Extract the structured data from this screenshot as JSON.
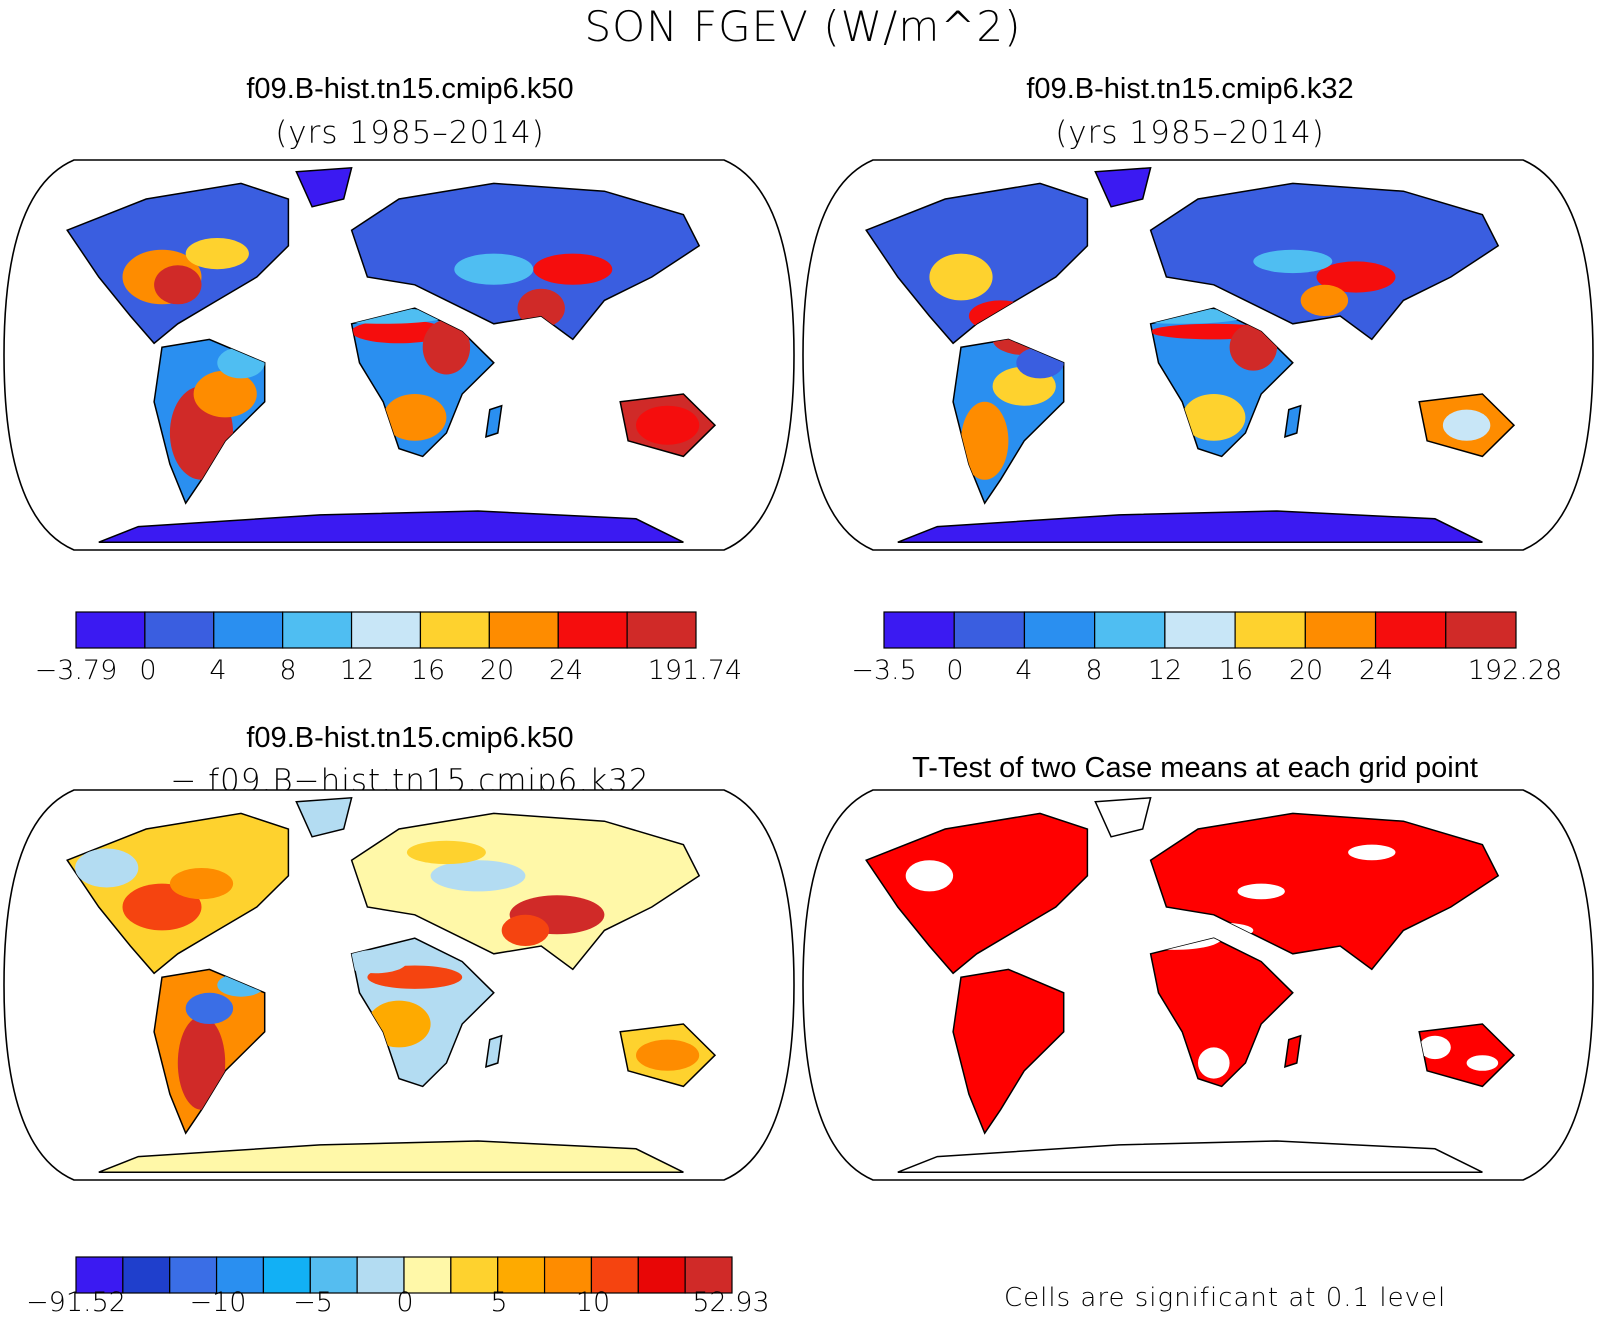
{
  "figure": {
    "title": "SON FGEV (W/m^2)"
  },
  "panels": {
    "k50": {
      "title": "f09.B-hist.tn15.cmip6.k50",
      "subtitle": "(yrs 1985–2014)",
      "colorbar": {
        "labels": [
          "−3.79",
          "0",
          "4",
          "8",
          "12",
          "16",
          "20",
          "24",
          "191.74"
        ],
        "colors": [
          "#3b1af2",
          "#3a5ee0",
          "#2a8ff0",
          "#4fbef2",
          "#c8e6f7",
          "#fed22e",
          "#fe8c00",
          "#f50d0d",
          "#d02a28"
        ]
      }
    },
    "k32": {
      "title": "f09.B-hist.tn15.cmip6.k32",
      "subtitle": "(yrs 1985–2014)",
      "colorbar": {
        "labels": [
          "−3.5",
          "0",
          "4",
          "8",
          "12",
          "16",
          "20",
          "24",
          "192.28"
        ],
        "colors": [
          "#3b1af2",
          "#3a5ee0",
          "#2a8ff0",
          "#4fbef2",
          "#c8e6f7",
          "#fed22e",
          "#fe8c00",
          "#f50d0d",
          "#d02a28"
        ]
      }
    },
    "diff": {
      "title": "f09.B-hist.tn15.cmip6.k50",
      "subtitle": "− f09.B−hist.tn15.cmip6.k32",
      "colorbar": {
        "labels": [
          "−91.52",
          "−10",
          "−5",
          "0",
          "5",
          "10",
          "52.93"
        ],
        "colors": [
          "#3b1af2",
          "#1f3fcc",
          "#3a6ee6",
          "#2a8ff0",
          "#12b0f5",
          "#55bdf0",
          "#b3dcf2",
          "#fff8a8",
          "#fed22e",
          "#feaa00",
          "#fe8c00",
          "#f54410",
          "#e80606",
          "#d02a28"
        ]
      }
    },
    "ttest": {
      "title": "T-Test of two Case means at each grid point",
      "note": "Cells are significant at 0.1 level",
      "fill_color": "#ff0000"
    }
  }
}
